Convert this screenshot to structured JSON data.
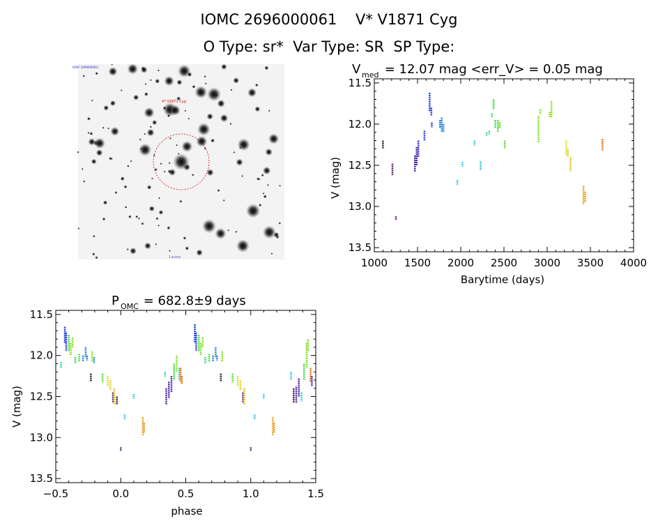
{
  "header": {
    "line1": "IOMC 2696000061    V* V1871 Cyg",
    "line2": "O Type: sr*  Var Type: SR  SP Type:"
  },
  "image_panel": {
    "caption_top_left": "IOMC 2696000061",
    "caption_target": "V* V1871 Cyg",
    "caption_bottom": "1 arcmin"
  },
  "chart_data": [
    {
      "type": "scatter",
      "title": "V_med = 12.07 mag <err_V> = 0.05 mag",
      "title_parts": {
        "v": "V",
        "sub": "med",
        "rest": " = 12.07 mag <err_V> = 0.05 mag"
      },
      "xlabel": "Barytime (days)",
      "ylabel": "V (mag)",
      "xlim": [
        1000,
        4000
      ],
      "ylim": [
        13.55,
        11.45
      ],
      "y_inverted": true,
      "xticks": [
        1000,
        1500,
        2000,
        2500,
        3000,
        3500,
        4000
      ],
      "yticks": [
        11.5,
        12.0,
        12.5,
        13.0,
        13.5
      ],
      "tick_labels_x": [
        "1000",
        "1500",
        "2000",
        "2500",
        "3000",
        "3500",
        "4000"
      ],
      "tick_labels_y": [
        "11.5",
        "12.0",
        "12.5",
        "13.0",
        "13.5"
      ],
      "segments": [
        {
          "x": 1100,
          "y1": 12.2,
          "y2": 12.3,
          "color": "#3a1a3a"
        },
        {
          "x": 1210,
          "y1": 12.48,
          "y2": 12.62,
          "color": "#5a1a6a"
        },
        {
          "x": 1250,
          "y1": 13.12,
          "y2": 13.16,
          "color": "#5a1a6a"
        },
        {
          "x": 1470,
          "y1": 12.38,
          "y2": 12.58,
          "color": "#4b1fa8"
        },
        {
          "x": 1490,
          "y1": 12.28,
          "y2": 12.5,
          "color": "#4b1fa8"
        },
        {
          "x": 1510,
          "y1": 12.2,
          "y2": 12.4,
          "color": "#3d2bc0"
        },
        {
          "x": 1580,
          "y1": 12.08,
          "y2": 12.2,
          "color": "#2a3ad0"
        },
        {
          "x": 1640,
          "y1": 11.62,
          "y2": 11.85,
          "color": "#1a3ae0"
        },
        {
          "x": 1660,
          "y1": 11.8,
          "y2": 11.9,
          "color": "#1a3ae0"
        },
        {
          "x": 1665,
          "y1": 11.98,
          "y2": 12.04,
          "color": "#1a3ae0"
        },
        {
          "x": 1760,
          "y1": 11.95,
          "y2": 12.05,
          "color": "#1e7ad8"
        },
        {
          "x": 1780,
          "y1": 11.92,
          "y2": 12.1,
          "color": "#1e8ae0"
        },
        {
          "x": 1800,
          "y1": 12.0,
          "y2": 12.1,
          "color": "#1e8ae0"
        },
        {
          "x": 1960,
          "y1": 12.68,
          "y2": 12.74,
          "color": "#30c8e0"
        },
        {
          "x": 2020,
          "y1": 12.46,
          "y2": 12.52,
          "color": "#30c8e0"
        },
        {
          "x": 2160,
          "y1": 12.2,
          "y2": 12.26,
          "color": "#30c8e0"
        },
        {
          "x": 2230,
          "y1": 12.45,
          "y2": 12.56,
          "color": "#30c8e0"
        },
        {
          "x": 2300,
          "y1": 12.1,
          "y2": 12.14,
          "color": "#30d8a0"
        },
        {
          "x": 2330,
          "y1": 12.08,
          "y2": 12.13,
          "color": "#30d8a0"
        },
        {
          "x": 2360,
          "y1": 11.87,
          "y2": 11.92,
          "color": "#30d870"
        },
        {
          "x": 2380,
          "y1": 11.7,
          "y2": 11.82,
          "color": "#40d840"
        },
        {
          "x": 2400,
          "y1": 11.95,
          "y2": 12.05,
          "color": "#40d840"
        },
        {
          "x": 2430,
          "y1": 11.95,
          "y2": 12.1,
          "color": "#50e030"
        },
        {
          "x": 2450,
          "y1": 11.98,
          "y2": 12.05,
          "color": "#50e030"
        },
        {
          "x": 2510,
          "y1": 12.2,
          "y2": 12.3,
          "color": "#50e030"
        },
        {
          "x": 2900,
          "y1": 11.9,
          "y2": 12.22,
          "color": "#80e020"
        },
        {
          "x": 2920,
          "y1": 11.82,
          "y2": 11.88,
          "color": "#80e020"
        },
        {
          "x": 3030,
          "y1": 11.85,
          "y2": 11.92,
          "color": "#90e020"
        },
        {
          "x": 3050,
          "y1": 11.72,
          "y2": 11.92,
          "color": "#90e020"
        },
        {
          "x": 3220,
          "y1": 12.2,
          "y2": 12.38,
          "color": "#d8e020"
        },
        {
          "x": 3240,
          "y1": 12.3,
          "y2": 12.4,
          "color": "#e0d020"
        },
        {
          "x": 3270,
          "y1": 12.4,
          "y2": 12.58,
          "color": "#e0c020"
        },
        {
          "x": 3420,
          "y1": 12.75,
          "y2": 12.97,
          "color": "#e8a020"
        },
        {
          "x": 3440,
          "y1": 12.82,
          "y2": 12.95,
          "color": "#e8a020"
        },
        {
          "x": 3640,
          "y1": 12.18,
          "y2": 12.32,
          "color": "#e07010"
        }
      ]
    },
    {
      "type": "scatter",
      "title": "P_OMC = 682.8±9 days",
      "title_parts": {
        "p": "P",
        "sub": "OMC",
        "rest": " = 682.8±9 days"
      },
      "xlabel": "phase",
      "ylabel": "V (mag)",
      "xlim": [
        -0.5,
        1.5
      ],
      "ylim": [
        13.55,
        11.45
      ],
      "y_inverted": true,
      "xticks": [
        -0.5,
        0.0,
        0.5,
        1.0,
        1.5
      ],
      "yticks": [
        11.5,
        12.0,
        12.5,
        13.0,
        13.5
      ],
      "tick_labels_x": [
        "−0.5",
        "0.0",
        "0.5",
        "1.0",
        "1.5"
      ],
      "tick_labels_y": [
        "11.5",
        "12.0",
        "12.5",
        "13.0",
        "13.5"
      ],
      "segments": [
        {
          "x": -0.46,
          "y1": 12.08,
          "y2": 12.15,
          "color": "#30d8a0"
        },
        {
          "x": -0.43,
          "y1": 11.65,
          "y2": 11.85,
          "color": "#1a3ae0"
        },
        {
          "x": -0.42,
          "y1": 11.72,
          "y2": 11.95,
          "color": "#2a3ad0"
        },
        {
          "x": -0.4,
          "y1": 11.75,
          "y2": 11.95,
          "color": "#40d840"
        },
        {
          "x": -0.385,
          "y1": 11.85,
          "y2": 12.0,
          "color": "#80e020"
        },
        {
          "x": -0.37,
          "y1": 11.78,
          "y2": 11.9,
          "color": "#90e020"
        },
        {
          "x": -0.35,
          "y1": 12.02,
          "y2": 12.1,
          "color": "#30d870"
        },
        {
          "x": -0.32,
          "y1": 11.98,
          "y2": 12.08,
          "color": "#50e030"
        },
        {
          "x": -0.29,
          "y1": 12.0,
          "y2": 12.07,
          "color": "#1e8ae0"
        },
        {
          "x": -0.27,
          "y1": 11.9,
          "y2": 12.02,
          "color": "#1e8ae0"
        },
        {
          "x": -0.26,
          "y1": 12.0,
          "y2": 12.06,
          "color": "#1e7ad8"
        },
        {
          "x": -0.23,
          "y1": 12.22,
          "y2": 12.32,
          "color": "#3a1a3a"
        },
        {
          "x": -0.22,
          "y1": 11.95,
          "y2": 12.08,
          "color": "#90e020"
        },
        {
          "x": -0.205,
          "y1": 12.02,
          "y2": 12.1,
          "color": "#1e8ae0"
        },
        {
          "x": -0.14,
          "y1": 12.22,
          "y2": 12.33,
          "color": "#50e030"
        },
        {
          "x": -0.1,
          "y1": 12.25,
          "y2": 12.38,
          "color": "#d8e020"
        },
        {
          "x": -0.08,
          "y1": 12.3,
          "y2": 12.42,
          "color": "#e0d020"
        },
        {
          "x": -0.06,
          "y1": 12.45,
          "y2": 12.58,
          "color": "#5a1a6a"
        },
        {
          "x": -0.05,
          "y1": 12.4,
          "y2": 12.6,
          "color": "#e0c020"
        },
        {
          "x": -0.03,
          "y1": 12.5,
          "y2": 12.6,
          "color": "#3a1a3a"
        },
        {
          "x": 0.0,
          "y1": 13.12,
          "y2": 13.16,
          "color": "#5a1a6a"
        },
        {
          "x": 0.03,
          "y1": 12.72,
          "y2": 12.78,
          "color": "#30c8e0"
        },
        {
          "x": 0.1,
          "y1": 12.47,
          "y2": 12.53,
          "color": "#30c8e0"
        },
        {
          "x": 0.17,
          "y1": 12.75,
          "y2": 12.97,
          "color": "#e8a020"
        },
        {
          "x": 0.18,
          "y1": 12.82,
          "y2": 12.95,
          "color": "#e8a020"
        },
        {
          "x": 0.34,
          "y1": 12.2,
          "y2": 12.26,
          "color": "#30c8e0"
        },
        {
          "x": 0.35,
          "y1": 12.4,
          "y2": 12.6,
          "color": "#4b1fa8"
        },
        {
          "x": 0.37,
          "y1": 12.32,
          "y2": 12.52,
          "color": "#4b1fa8"
        },
        {
          "x": 0.39,
          "y1": 12.25,
          "y2": 12.45,
          "color": "#3d2bc0"
        },
        {
          "x": 0.41,
          "y1": 12.1,
          "y2": 12.3,
          "color": "#40d840"
        },
        {
          "x": 0.43,
          "y1": 12.0,
          "y2": 12.2,
          "color": "#80e020"
        },
        {
          "x": 0.45,
          "y1": 12.15,
          "y2": 12.3,
          "color": "#30d8a0"
        },
        {
          "x": 0.46,
          "y1": 12.15,
          "y2": 12.32,
          "color": "#e07010"
        },
        {
          "x": 0.47,
          "y1": 12.25,
          "y2": 12.35,
          "color": "#e07010"
        },
        {
          "x": 0.57,
          "y1": 11.62,
          "y2": 11.85,
          "color": "#1a3ae0"
        },
        {
          "x": 0.58,
          "y1": 11.72,
          "y2": 11.95,
          "color": "#2a3ad0"
        },
        {
          "x": 0.6,
          "y1": 11.75,
          "y2": 11.95,
          "color": "#40d840"
        },
        {
          "x": 0.615,
          "y1": 11.85,
          "y2": 12.0,
          "color": "#80e020"
        },
        {
          "x": 0.63,
          "y1": 11.78,
          "y2": 11.9,
          "color": "#90e020"
        },
        {
          "x": 0.65,
          "y1": 12.02,
          "y2": 12.1,
          "color": "#30d870"
        },
        {
          "x": 0.68,
          "y1": 11.98,
          "y2": 12.08,
          "color": "#50e030"
        },
        {
          "x": 0.71,
          "y1": 12.0,
          "y2": 12.07,
          "color": "#1e8ae0"
        },
        {
          "x": 0.73,
          "y1": 11.9,
          "y2": 12.02,
          "color": "#1e8ae0"
        },
        {
          "x": 0.74,
          "y1": 12.0,
          "y2": 12.06,
          "color": "#1e7ad8"
        },
        {
          "x": 0.77,
          "y1": 12.22,
          "y2": 12.32,
          "color": "#3a1a3a"
        },
        {
          "x": 0.78,
          "y1": 11.95,
          "y2": 12.08,
          "color": "#90e020"
        },
        {
          "x": 0.86,
          "y1": 12.22,
          "y2": 12.33,
          "color": "#50e030"
        },
        {
          "x": 0.9,
          "y1": 12.25,
          "y2": 12.38,
          "color": "#d8e020"
        },
        {
          "x": 0.92,
          "y1": 12.3,
          "y2": 12.42,
          "color": "#e0d020"
        },
        {
          "x": 0.94,
          "y1": 12.45,
          "y2": 12.58,
          "color": "#5a1a6a"
        },
        {
          "x": 0.95,
          "y1": 12.4,
          "y2": 12.6,
          "color": "#e0c020"
        },
        {
          "x": 1.0,
          "y1": 13.12,
          "y2": 13.16,
          "color": "#5a1a6a"
        },
        {
          "x": 1.03,
          "y1": 12.72,
          "y2": 12.78,
          "color": "#30c8e0"
        },
        {
          "x": 1.1,
          "y1": 12.47,
          "y2": 12.53,
          "color": "#30c8e0"
        },
        {
          "x": 1.17,
          "y1": 12.75,
          "y2": 12.97,
          "color": "#e8a020"
        },
        {
          "x": 1.18,
          "y1": 12.82,
          "y2": 12.95,
          "color": "#e8a020"
        },
        {
          "x": 1.31,
          "y1": 12.2,
          "y2": 12.3,
          "color": "#30c8e0"
        },
        {
          "x": 1.33,
          "y1": 12.4,
          "y2": 12.58,
          "color": "#3a1a3a"
        },
        {
          "x": 1.35,
          "y1": 12.38,
          "y2": 12.58,
          "color": "#4b1fa8"
        },
        {
          "x": 1.37,
          "y1": 12.28,
          "y2": 12.5,
          "color": "#4b1fa8"
        },
        {
          "x": 1.39,
          "y1": 12.45,
          "y2": 12.56,
          "color": "#30c8e0"
        },
        {
          "x": 1.41,
          "y1": 12.1,
          "y2": 12.3,
          "color": "#40d840"
        },
        {
          "x": 1.43,
          "y1": 11.85,
          "y2": 12.15,
          "color": "#80e020"
        },
        {
          "x": 1.44,
          "y1": 11.8,
          "y2": 11.95,
          "color": "#80e020"
        },
        {
          "x": 1.46,
          "y1": 12.15,
          "y2": 12.32,
          "color": "#e07010"
        },
        {
          "x": 1.47,
          "y1": 12.25,
          "y2": 12.38,
          "color": "#3d2bc0"
        }
      ]
    }
  ]
}
